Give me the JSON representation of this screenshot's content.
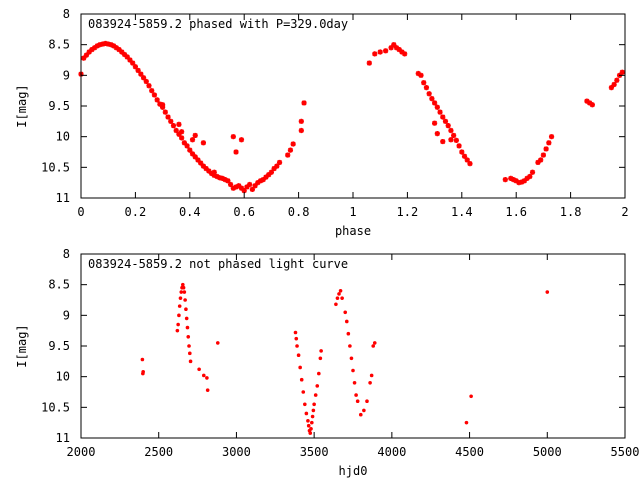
{
  "chart_data": [
    {
      "type": "scatter",
      "title": "083924-5859.2 phased with P=329.0day",
      "xlabel": "phase",
      "ylabel": "I[mag]",
      "xlim": [
        0,
        2
      ],
      "ylim": [
        8,
        11
      ],
      "y_inverted": true,
      "grid": false,
      "x_ticks": [
        "0",
        "0.2",
        "0.4",
        "0.6",
        "0.8",
        "1",
        "1.2",
        "1.4",
        "1.6",
        "1.8",
        "2"
      ],
      "y_ticks": [
        "8",
        "8.5",
        "9",
        "9.5",
        "10",
        "10.5",
        "11"
      ],
      "marker": "cross",
      "color": "#ff0000",
      "points": [
        [
          0.0,
          8.98
        ],
        [
          0.01,
          8.72
        ],
        [
          0.02,
          8.67
        ],
        [
          0.03,
          8.62
        ],
        [
          0.04,
          8.58
        ],
        [
          0.05,
          8.55
        ],
        [
          0.06,
          8.52
        ],
        [
          0.07,
          8.5
        ],
        [
          0.08,
          8.49
        ],
        [
          0.09,
          8.48
        ],
        [
          0.1,
          8.49
        ],
        [
          0.11,
          8.5
        ],
        [
          0.12,
          8.52
        ],
        [
          0.13,
          8.55
        ],
        [
          0.14,
          8.58
        ],
        [
          0.15,
          8.62
        ],
        [
          0.16,
          8.66
        ],
        [
          0.17,
          8.7
        ],
        [
          0.18,
          8.75
        ],
        [
          0.19,
          8.8
        ],
        [
          0.2,
          8.86
        ],
        [
          0.21,
          8.92
        ],
        [
          0.22,
          8.98
        ],
        [
          0.23,
          9.04
        ],
        [
          0.24,
          9.1
        ],
        [
          0.25,
          9.17
        ],
        [
          0.26,
          9.25
        ],
        [
          0.27,
          9.32
        ],
        [
          0.28,
          9.4
        ],
        [
          0.29,
          9.47
        ],
        [
          0.3,
          9.52
        ],
        [
          0.31,
          9.6
        ],
        [
          0.32,
          9.68
        ],
        [
          0.33,
          9.75
        ],
        [
          0.34,
          9.82
        ],
        [
          0.35,
          9.9
        ],
        [
          0.36,
          9.96
        ],
        [
          0.37,
          10.02
        ],
        [
          0.38,
          10.1
        ],
        [
          0.39,
          10.15
        ],
        [
          0.4,
          10.22
        ],
        [
          0.41,
          10.28
        ],
        [
          0.42,
          10.33
        ],
        [
          0.43,
          10.38
        ],
        [
          0.44,
          10.43
        ],
        [
          0.45,
          10.48
        ],
        [
          0.46,
          10.52
        ],
        [
          0.47,
          10.56
        ],
        [
          0.48,
          10.6
        ],
        [
          0.49,
          10.63
        ],
        [
          0.5,
          10.65
        ],
        [
          0.51,
          10.67
        ],
        [
          0.52,
          10.68
        ],
        [
          0.53,
          10.7
        ],
        [
          0.54,
          10.72
        ],
        [
          0.55,
          10.78
        ],
        [
          0.56,
          10.84
        ],
        [
          0.57,
          10.82
        ],
        [
          0.58,
          10.8
        ],
        [
          0.59,
          10.84
        ],
        [
          0.6,
          10.88
        ],
        [
          0.61,
          10.82
        ],
        [
          0.62,
          10.78
        ],
        [
          0.63,
          10.86
        ],
        [
          0.64,
          10.8
        ],
        [
          0.65,
          10.75
        ],
        [
          0.66,
          10.72
        ],
        [
          0.67,
          10.7
        ],
        [
          0.68,
          10.66
        ],
        [
          0.69,
          10.62
        ],
        [
          0.7,
          10.58
        ],
        [
          0.71,
          10.52
        ],
        [
          0.72,
          10.48
        ],
        [
          0.73,
          10.42
        ],
        [
          0.76,
          10.3
        ],
        [
          0.77,
          10.22
        ],
        [
          0.78,
          10.12
        ],
        [
          0.81,
          9.9
        ],
        [
          0.81,
          9.75
        ],
        [
          0.82,
          9.45
        ],
        [
          0.42,
          9.98
        ],
        [
          0.45,
          10.1
        ],
        [
          0.56,
          10.0
        ],
        [
          0.57,
          10.25
        ],
        [
          0.59,
          10.05
        ],
        [
          0.3,
          9.48
        ],
        [
          0.36,
          9.8
        ],
        [
          0.41,
          10.05
        ],
        [
          0.37,
          9.92
        ],
        [
          0.49,
          10.58
        ],
        [
          1.06,
          8.8
        ],
        [
          1.08,
          8.65
        ],
        [
          1.1,
          8.62
        ],
        [
          1.12,
          8.6
        ],
        [
          1.14,
          8.55
        ],
        [
          1.15,
          8.5
        ],
        [
          1.16,
          8.55
        ],
        [
          1.17,
          8.58
        ],
        [
          1.18,
          8.62
        ],
        [
          1.19,
          8.65
        ],
        [
          1.24,
          8.97
        ],
        [
          1.25,
          9.0
        ],
        [
          1.26,
          9.12
        ],
        [
          1.27,
          9.2
        ],
        [
          1.28,
          9.3
        ],
        [
          1.29,
          9.38
        ],
        [
          1.3,
          9.45
        ],
        [
          1.31,
          9.52
        ],
        [
          1.32,
          9.6
        ],
        [
          1.33,
          9.68
        ],
        [
          1.34,
          9.75
        ],
        [
          1.35,
          9.82
        ],
        [
          1.36,
          9.9
        ],
        [
          1.37,
          9.98
        ],
        [
          1.38,
          10.06
        ],
        [
          1.39,
          10.15
        ],
        [
          1.4,
          10.25
        ],
        [
          1.41,
          10.32
        ],
        [
          1.42,
          10.38
        ],
        [
          1.43,
          10.44
        ],
        [
          1.3,
          9.78
        ],
        [
          1.31,
          9.95
        ],
        [
          1.33,
          10.08
        ],
        [
          1.36,
          10.05
        ],
        [
          1.56,
          10.7
        ],
        [
          1.58,
          10.68
        ],
        [
          1.59,
          10.7
        ],
        [
          1.6,
          10.72
        ],
        [
          1.61,
          10.75
        ],
        [
          1.62,
          10.74
        ],
        [
          1.63,
          10.72
        ],
        [
          1.64,
          10.68
        ],
        [
          1.65,
          10.65
        ],
        [
          1.66,
          10.58
        ],
        [
          1.68,
          10.42
        ],
        [
          1.69,
          10.38
        ],
        [
          1.7,
          10.3
        ],
        [
          1.71,
          10.2
        ],
        [
          1.72,
          10.1
        ],
        [
          1.73,
          10.0
        ],
        [
          1.86,
          9.42
        ],
        [
          1.87,
          9.45
        ],
        [
          1.88,
          9.48
        ],
        [
          1.95,
          9.2
        ],
        [
          1.96,
          9.15
        ],
        [
          1.97,
          9.08
        ],
        [
          1.98,
          9.0
        ],
        [
          1.99,
          8.95
        ]
      ]
    },
    {
      "type": "scatter",
      "title": "083924-5859.2 not phased light curve",
      "xlabel": "hjd0",
      "ylabel": "I[mag]",
      "xlim": [
        2000,
        5500
      ],
      "ylim": [
        8,
        11
      ],
      "y_inverted": true,
      "grid": false,
      "x_ticks": [
        "2000",
        "2500",
        "3000",
        "3500",
        "4000",
        "4500",
        "5000",
        "5500"
      ],
      "y_ticks": [
        "8",
        "8.5",
        "9",
        "9.5",
        "10",
        "10.5",
        "11"
      ],
      "marker": "dot",
      "color": "#ff0000",
      "points": [
        [
          2395,
          9.72
        ],
        [
          2398,
          9.95
        ],
        [
          2400,
          9.92
        ],
        [
          2620,
          9.25
        ],
        [
          2625,
          9.15
        ],
        [
          2630,
          9.0
        ],
        [
          2635,
          8.85
        ],
        [
          2640,
          8.72
        ],
        [
          2645,
          8.62
        ],
        [
          2650,
          8.55
        ],
        [
          2655,
          8.5
        ],
        [
          2660,
          8.55
        ],
        [
          2665,
          8.62
        ],
        [
          2670,
          8.75
        ],
        [
          2675,
          8.9
        ],
        [
          2680,
          9.05
        ],
        [
          2685,
          9.2
        ],
        [
          2690,
          9.35
        ],
        [
          2695,
          9.5
        ],
        [
          2700,
          9.62
        ],
        [
          2705,
          9.75
        ],
        [
          2760,
          9.88
        ],
        [
          2790,
          9.98
        ],
        [
          2810,
          10.02
        ],
        [
          2815,
          10.22
        ],
        [
          2880,
          9.45
        ],
        [
          3380,
          9.28
        ],
        [
          3385,
          9.38
        ],
        [
          3390,
          9.5
        ],
        [
          3400,
          9.65
        ],
        [
          3410,
          9.85
        ],
        [
          3420,
          10.05
        ],
        [
          3430,
          10.25
        ],
        [
          3440,
          10.45
        ],
        [
          3450,
          10.6
        ],
        [
          3460,
          10.72
        ],
        [
          3465,
          10.8
        ],
        [
          3470,
          10.88
        ],
        [
          3475,
          10.92
        ],
        [
          3480,
          10.85
        ],
        [
          3485,
          10.75
        ],
        [
          3490,
          10.65
        ],
        [
          3495,
          10.55
        ],
        [
          3500,
          10.45
        ],
        [
          3510,
          10.3
        ],
        [
          3520,
          10.15
        ],
        [
          3530,
          9.95
        ],
        [
          3540,
          9.7
        ],
        [
          3545,
          9.58
        ],
        [
          3640,
          8.82
        ],
        [
          3650,
          8.72
        ],
        [
          3660,
          8.65
        ],
        [
          3670,
          8.6
        ],
        [
          3680,
          8.72
        ],
        [
          3700,
          8.95
        ],
        [
          3710,
          9.1
        ],
        [
          3720,
          9.3
        ],
        [
          3730,
          9.5
        ],
        [
          3740,
          9.7
        ],
        [
          3750,
          9.9
        ],
        [
          3760,
          10.1
        ],
        [
          3770,
          10.3
        ],
        [
          3780,
          10.4
        ],
        [
          3800,
          10.62
        ],
        [
          3820,
          10.55
        ],
        [
          3840,
          10.4
        ],
        [
          3860,
          10.1
        ],
        [
          3870,
          9.98
        ],
        [
          3880,
          9.5
        ],
        [
          3890,
          9.45
        ],
        [
          4480,
          10.75
        ],
        [
          4510,
          10.32
        ],
        [
          5000,
          8.62
        ]
      ]
    }
  ]
}
